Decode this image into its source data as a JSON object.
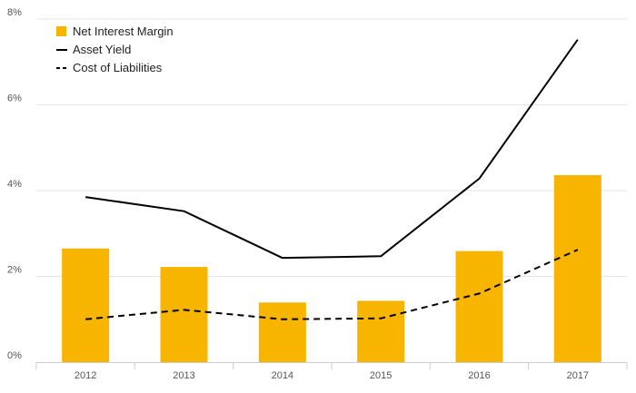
{
  "chart_data": {
    "type": "bar",
    "categories": [
      "2012",
      "2013",
      "2014",
      "2015",
      "2016",
      "2017"
    ],
    "series": [
      {
        "name": "Net Interest Margin",
        "kind": "bar",
        "color": "#f7b500",
        "values": [
          2.65,
          2.22,
          1.39,
          1.43,
          2.59,
          4.36
        ]
      },
      {
        "name": "Asset Yield",
        "kind": "line",
        "style": "solid",
        "color": "#000000",
        "values": [
          3.85,
          3.52,
          2.43,
          2.47,
          4.28,
          7.52
        ]
      },
      {
        "name": "Cost of Liabilities",
        "kind": "line",
        "style": "dashed",
        "color": "#000000",
        "values": [
          1.0,
          1.22,
          1.0,
          1.02,
          1.6,
          2.62
        ]
      }
    ],
    "title": "",
    "xlabel": "",
    "ylabel": "",
    "ylim": [
      0,
      8
    ],
    "yticks": [
      0,
      2,
      4,
      6,
      8
    ],
    "ytick_labels": [
      "0%",
      "2%",
      "4%",
      "6%",
      "8%"
    ],
    "grid": true,
    "legend_position": "top-left"
  }
}
